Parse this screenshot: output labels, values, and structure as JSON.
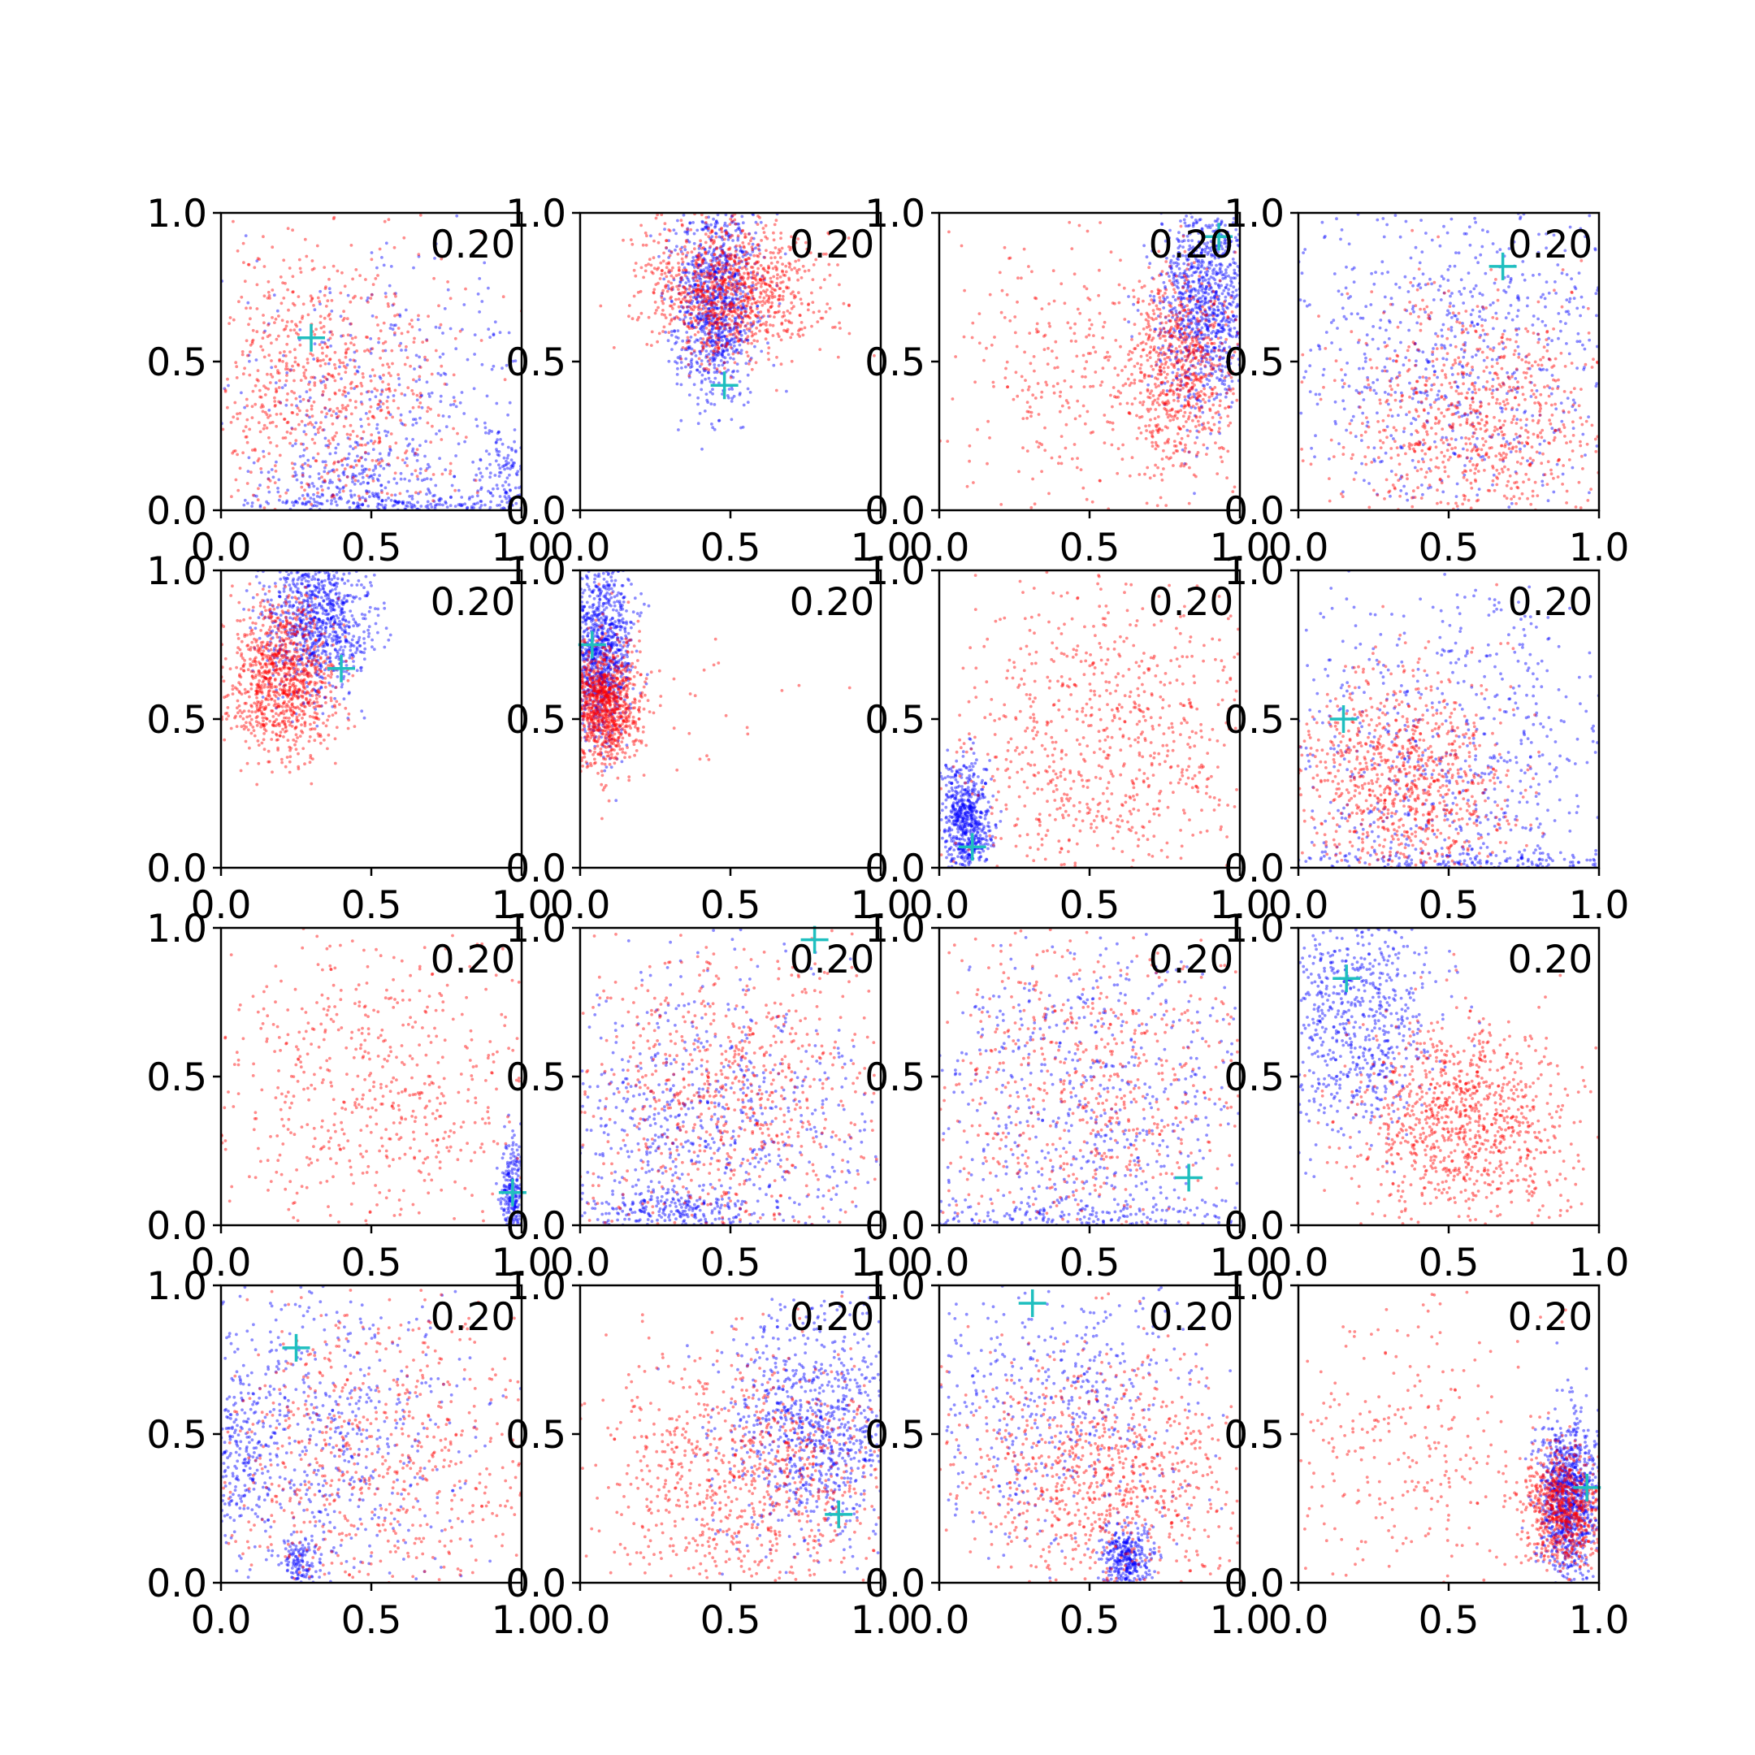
{
  "colors": {
    "series_blue": "#0000ff",
    "series_red": "#ff0000",
    "marker": "#1fbfbf",
    "axes": "#000000",
    "background": "#ffffff"
  },
  "chart_data": {
    "type": "scatter",
    "layout": "4x4 grid of subplots",
    "xlim": [
      0.0,
      1.0
    ],
    "ylim": [
      0.0,
      1.0
    ],
    "xticks": [
      "0.0",
      "0.5",
      "1.0"
    ],
    "yticks": [
      "0.0",
      "0.5",
      "1.0"
    ],
    "grid": false,
    "legend": "none",
    "series_colors": [
      "#0000ff",
      "#ff0000"
    ],
    "marker_symbol": "+",
    "panels": [
      {
        "label": "0.20",
        "marker": [
          0.3,
          0.58
        ],
        "blue": [
          {
            "mx": 0.6,
            "my": 0.25,
            "sx": 0.3,
            "sy": 0.3,
            "n": 520
          },
          {
            "mx": 0.55,
            "my": 0.02,
            "sx": 0.3,
            "sy": 0.02,
            "n": 200
          },
          {
            "mx": 0.95,
            "my": 0.1,
            "sx": 0.05,
            "sy": 0.1,
            "n": 150
          },
          {
            "mx": 0.45,
            "my": 0.1,
            "sx": 0.12,
            "sy": 0.08,
            "n": 160
          }
        ],
        "red": [
          {
            "mx": 0.32,
            "my": 0.42,
            "sx": 0.22,
            "sy": 0.28,
            "n": 850
          }
        ]
      },
      {
        "label": "0.20",
        "marker": [
          0.48,
          0.42
        ],
        "blue": [
          {
            "mx": 0.45,
            "my": 0.7,
            "sx": 0.07,
            "sy": 0.16,
            "n": 1000
          }
        ],
        "red": [
          {
            "mx": 0.5,
            "my": 0.74,
            "sx": 0.14,
            "sy": 0.12,
            "n": 1100
          }
        ]
      },
      {
        "label": "0.20",
        "marker": [
          0.93,
          0.92
        ],
        "blue": [
          {
            "mx": 0.88,
            "my": 0.7,
            "sx": 0.08,
            "sy": 0.18,
            "n": 1000
          }
        ],
        "red": [
          {
            "mx": 0.8,
            "my": 0.48,
            "sx": 0.1,
            "sy": 0.17,
            "n": 750
          },
          {
            "mx": 0.4,
            "my": 0.45,
            "sx": 0.22,
            "sy": 0.25,
            "n": 280
          }
        ]
      },
      {
        "label": "0.20",
        "marker": [
          0.68,
          0.82
        ],
        "blue": [
          {
            "mx": 0.5,
            "my": 0.52,
            "sx": 0.32,
            "sy": 0.3,
            "n": 800
          }
        ],
        "red": [
          {
            "mx": 0.58,
            "my": 0.3,
            "sx": 0.22,
            "sy": 0.2,
            "n": 850
          }
        ]
      },
      {
        "label": "0.20",
        "marker": [
          0.4,
          0.67
        ],
        "blue": [
          {
            "mx": 0.32,
            "my": 0.84,
            "sx": 0.09,
            "sy": 0.13,
            "n": 950
          }
        ],
        "red": [
          {
            "mx": 0.2,
            "my": 0.64,
            "sx": 0.09,
            "sy": 0.13,
            "n": 1000
          }
        ]
      },
      {
        "label": "0.20",
        "marker": [
          0.04,
          0.75
        ],
        "blue": [
          {
            "mx": 0.07,
            "my": 0.74,
            "sx": 0.05,
            "sy": 0.16,
            "n": 1000
          }
        ],
        "red": [
          {
            "mx": 0.08,
            "my": 0.55,
            "sx": 0.06,
            "sy": 0.1,
            "n": 1000
          },
          {
            "mx": 0.35,
            "my": 0.5,
            "sx": 0.18,
            "sy": 0.12,
            "n": 30
          }
        ]
      },
      {
        "label": "0.20",
        "marker": [
          0.11,
          0.07
        ],
        "blue": [
          {
            "mx": 0.09,
            "my": 0.16,
            "sx": 0.04,
            "sy": 0.1,
            "n": 650
          }
        ],
        "red": [
          {
            "mx": 0.55,
            "my": 0.4,
            "sx": 0.28,
            "sy": 0.28,
            "n": 850
          }
        ]
      },
      {
        "label": "0.20",
        "marker": [
          0.15,
          0.5
        ],
        "blue": [
          {
            "mx": 0.5,
            "my": 0.4,
            "sx": 0.32,
            "sy": 0.33,
            "n": 750
          },
          {
            "mx": 0.5,
            "my": 0.02,
            "sx": 0.35,
            "sy": 0.02,
            "n": 200
          }
        ],
        "red": [
          {
            "mx": 0.35,
            "my": 0.28,
            "sx": 0.18,
            "sy": 0.18,
            "n": 950
          }
        ]
      },
      {
        "label": "0.20",
        "marker": [
          0.97,
          0.11
        ],
        "blue": [
          {
            "mx": 0.97,
            "my": 0.1,
            "sx": 0.02,
            "sy": 0.09,
            "n": 280
          }
        ],
        "red": [
          {
            "mx": 0.5,
            "my": 0.45,
            "sx": 0.3,
            "sy": 0.3,
            "n": 650
          }
        ]
      },
      {
        "label": "0.20",
        "marker": [
          0.78,
          0.96
        ],
        "blue": [
          {
            "mx": 0.4,
            "my": 0.35,
            "sx": 0.3,
            "sy": 0.28,
            "n": 800
          },
          {
            "mx": 0.3,
            "my": 0.05,
            "sx": 0.15,
            "sy": 0.04,
            "n": 200
          }
        ],
        "red": [
          {
            "mx": 0.5,
            "my": 0.4,
            "sx": 0.28,
            "sy": 0.28,
            "n": 850
          }
        ]
      },
      {
        "label": "0.20",
        "marker": [
          0.83,
          0.16
        ],
        "blue": [
          {
            "mx": 0.45,
            "my": 0.45,
            "sx": 0.32,
            "sy": 0.32,
            "n": 700
          },
          {
            "mx": 0.45,
            "my": 0.03,
            "sx": 0.3,
            "sy": 0.03,
            "n": 200
          }
        ],
        "red": [
          {
            "mx": 0.5,
            "my": 0.45,
            "sx": 0.3,
            "sy": 0.3,
            "n": 700
          }
        ]
      },
      {
        "label": "0.20",
        "marker": [
          0.16,
          0.83
        ],
        "blue": [
          {
            "mx": 0.18,
            "my": 0.7,
            "sx": 0.14,
            "sy": 0.2,
            "n": 750
          }
        ],
        "red": [
          {
            "mx": 0.55,
            "my": 0.35,
            "sx": 0.18,
            "sy": 0.17,
            "n": 1000
          }
        ]
      },
      {
        "label": "0.20",
        "marker": [
          0.25,
          0.79
        ],
        "blue": [
          {
            "mx": 0.3,
            "my": 0.5,
            "sx": 0.25,
            "sy": 0.3,
            "n": 700
          },
          {
            "mx": 0.26,
            "my": 0.07,
            "sx": 0.03,
            "sy": 0.04,
            "n": 120
          },
          {
            "mx": 0.05,
            "my": 0.4,
            "sx": 0.05,
            "sy": 0.15,
            "n": 180
          }
        ],
        "red": [
          {
            "mx": 0.5,
            "my": 0.4,
            "sx": 0.3,
            "sy": 0.28,
            "n": 750
          }
        ]
      },
      {
        "label": "0.20",
        "marker": [
          0.86,
          0.23
        ],
        "blue": [
          {
            "mx": 0.78,
            "my": 0.52,
            "sx": 0.15,
            "sy": 0.2,
            "n": 900
          }
        ],
        "red": [
          {
            "mx": 0.55,
            "my": 0.35,
            "sx": 0.25,
            "sy": 0.22,
            "n": 900
          }
        ]
      },
      {
        "label": "0.20",
        "marker": [
          0.31,
          0.94
        ],
        "blue": [
          {
            "mx": 0.62,
            "my": 0.08,
            "sx": 0.04,
            "sy": 0.06,
            "n": 350
          },
          {
            "mx": 0.4,
            "my": 0.6,
            "sx": 0.25,
            "sy": 0.22,
            "n": 500
          }
        ],
        "red": [
          {
            "mx": 0.55,
            "my": 0.35,
            "sx": 0.25,
            "sy": 0.22,
            "n": 900
          }
        ]
      },
      {
        "label": "0.20",
        "marker": [
          0.96,
          0.32
        ],
        "blue": [
          {
            "mx": 0.9,
            "my": 0.28,
            "sx": 0.05,
            "sy": 0.13,
            "n": 1000
          }
        ],
        "red": [
          {
            "mx": 0.88,
            "my": 0.25,
            "sx": 0.07,
            "sy": 0.1,
            "n": 750
          },
          {
            "mx": 0.35,
            "my": 0.45,
            "sx": 0.25,
            "sy": 0.25,
            "n": 300
          }
        ]
      }
    ]
  }
}
